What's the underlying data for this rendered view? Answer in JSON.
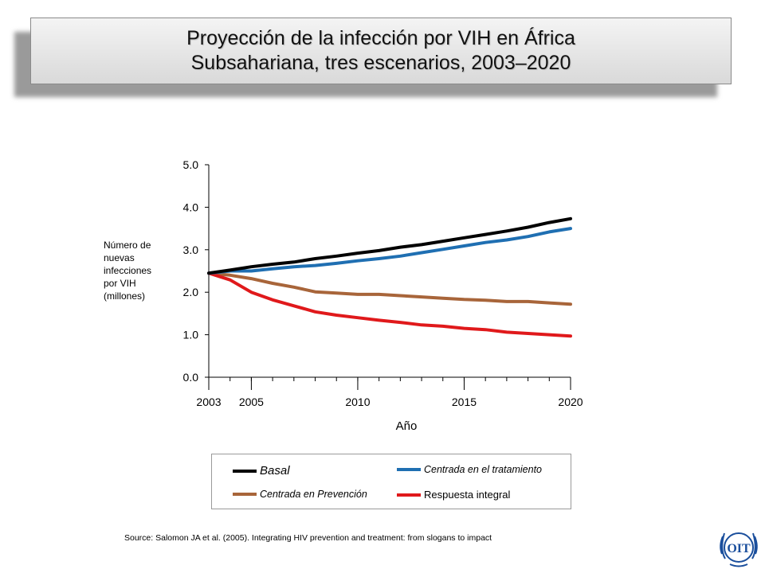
{
  "title": {
    "line1": "Proyección de la infección por VIH en África",
    "line2": "Subsahariana, tres escenarios, 2003–2020"
  },
  "chart_data": {
    "type": "line",
    "title": "Proyección de la infección por VIH en África Subsahariana, tres escenarios, 2003–2020",
    "xlabel": "Año",
    "ylabel": "Número de nuevas infecciones por VIH (millones)",
    "x": [
      2003,
      2004,
      2005,
      2006,
      2007,
      2008,
      2009,
      2010,
      2011,
      2012,
      2013,
      2014,
      2015,
      2016,
      2017,
      2018,
      2019,
      2020
    ],
    "xlim": [
      2003,
      2020
    ],
    "ylim": [
      0,
      5
    ],
    "x_ticks": [
      "2003",
      "2005",
      "2010",
      "2015",
      "2020"
    ],
    "y_ticks": [
      "0.0",
      "1.0",
      "2.0",
      "3.0",
      "4.0",
      "5.0"
    ],
    "grid": false,
    "legend_position": "bottom",
    "series": [
      {
        "name": "Basal",
        "color": "#000000",
        "values": [
          2.45,
          2.52,
          2.6,
          2.66,
          2.71,
          2.79,
          2.85,
          2.92,
          2.98,
          3.06,
          3.12,
          3.2,
          3.28,
          3.36,
          3.44,
          3.53,
          3.64,
          3.73
        ]
      },
      {
        "name": "Centrada en el tratamiento",
        "color": "#1f6fb2",
        "values": [
          2.45,
          2.5,
          2.5,
          2.55,
          2.6,
          2.63,
          2.68,
          2.74,
          2.79,
          2.85,
          2.93,
          3.01,
          3.09,
          3.17,
          3.23,
          3.31,
          3.42,
          3.5
        ]
      },
      {
        "name": "Centrada en Prevención",
        "color": "#a8653a",
        "values": [
          2.45,
          2.4,
          2.32,
          2.21,
          2.12,
          2.01,
          1.98,
          1.95,
          1.95,
          1.92,
          1.89,
          1.86,
          1.83,
          1.81,
          1.78,
          1.78,
          1.75,
          1.72
        ]
      },
      {
        "name": "Respuesta integral",
        "color": "#e0191b",
        "values": [
          2.45,
          2.29,
          2.0,
          1.82,
          1.68,
          1.54,
          1.46,
          1.4,
          1.34,
          1.29,
          1.23,
          1.2,
          1.15,
          1.12,
          1.06,
          1.03,
          1.0,
          0.97
        ]
      }
    ]
  },
  "axis": {
    "ylabel_lines": [
      "Número de",
      "nuevas",
      "infecciones",
      "por VIH",
      "(millones)"
    ],
    "xlabel": "Año"
  },
  "legend": {
    "basal": "Basal",
    "tratamiento": "Centrada en el tratamiento",
    "prevencion": "Centrada en Prevención",
    "integral": "Respuesta integral"
  },
  "source": "Source:  Salomon JA et al. (2005).  Integrating HIV prevention and treatment: from slogans to impact",
  "logo": {
    "icon": "ilo-oit-logo",
    "text": "OIT",
    "color": "#1a4e9c"
  }
}
